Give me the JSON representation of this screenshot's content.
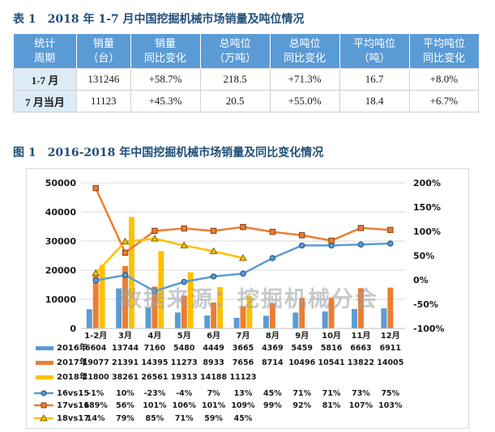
{
  "table1": {
    "title": "表 1　2018 年 1-7 月中国挖掘机械市场销量及吨位情况",
    "headers": [
      [
        "统计",
        "周期"
      ],
      [
        "销量",
        "（台）"
      ],
      [
        "销量",
        "同比变化"
      ],
      [
        "总吨位",
        "（万吨）"
      ],
      [
        "总吨位",
        "同比变化"
      ],
      [
        "平均吨位",
        "（吨）"
      ],
      [
        "平均吨位",
        "同比变化"
      ]
    ],
    "rows": [
      [
        "1-7 月",
        "131246",
        "+58.7%",
        "218.5",
        "+71.3%",
        "16.7",
        "+8.0%"
      ],
      [
        "7 月当月",
        "11123",
        "+45.3%",
        "20.5",
        "+55.0%",
        "18.4",
        "+6.7%"
      ]
    ],
    "header_color": "#5b9bd5"
  },
  "figure1": {
    "title": "图 1　2016-2018 年中国挖掘机械市场销量及同比变化情况",
    "watermark": "数据来源：挖掘机械分会"
  },
  "chart_data": {
    "type": "bar",
    "categories": [
      "1-2月",
      "3月",
      "4月",
      "5月",
      "6月",
      "7月",
      "8月",
      "9月",
      "10月",
      "11月",
      "12月"
    ],
    "y_left_ticks": [
      "0",
      "10000",
      "20000",
      "30000",
      "40000",
      "50000"
    ],
    "y_right_ticks": [
      "-100%",
      "-50%",
      "0%",
      "50%",
      "100%",
      "150%",
      "200%"
    ],
    "ylim_left": [
      0,
      50000
    ],
    "ylim_right": [
      -100,
      200
    ],
    "bar_series": [
      {
        "name": "2016年",
        "color": "#5b9bd5",
        "values": [
          6604,
          13744,
          7160,
          5480,
          4449,
          3665,
          4369,
          5459,
          5816,
          6663,
          6911
        ]
      },
      {
        "name": "2017年",
        "color": "#ed7d31",
        "values": [
          19077,
          21391,
          14395,
          11273,
          8933,
          7656,
          8714,
          10496,
          10541,
          13822,
          14005
        ]
      },
      {
        "name": "2018年",
        "color": "#ffc000",
        "values": [
          21800,
          38261,
          26561,
          19313,
          14188,
          11123,
          null,
          null,
          null,
          null,
          null
        ]
      }
    ],
    "line_series": [
      {
        "name": "16vs15",
        "color": "#5b9bd5",
        "values": [
          -1,
          10,
          -23,
          -4,
          7,
          13,
          45,
          71,
          71,
          73,
          75
        ],
        "labels": [
          "-1%",
          "10%",
          "-23%",
          "-4%",
          "7%",
          "13%",
          "45%",
          "71%",
          "71%",
          "73%",
          "75%"
        ]
      },
      {
        "name": "17vs16",
        "color": "#ed7d31",
        "values": [
          189,
          56,
          101,
          106,
          101,
          109,
          99,
          92,
          81,
          107,
          103
        ],
        "labels": [
          "189%",
          "56%",
          "101%",
          "106%",
          "101%",
          "109%",
          "99%",
          "92%",
          "81%",
          "107%",
          "103%"
        ]
      },
      {
        "name": "18vs17",
        "color": "#ffc000",
        "values": [
          14,
          79,
          85,
          71,
          59,
          45,
          null,
          null,
          null,
          null,
          null
        ],
        "labels": [
          "14%",
          "79%",
          "85%",
          "71%",
          "59%",
          "45%",
          "",
          "",
          "",
          "",
          ""
        ]
      }
    ]
  }
}
